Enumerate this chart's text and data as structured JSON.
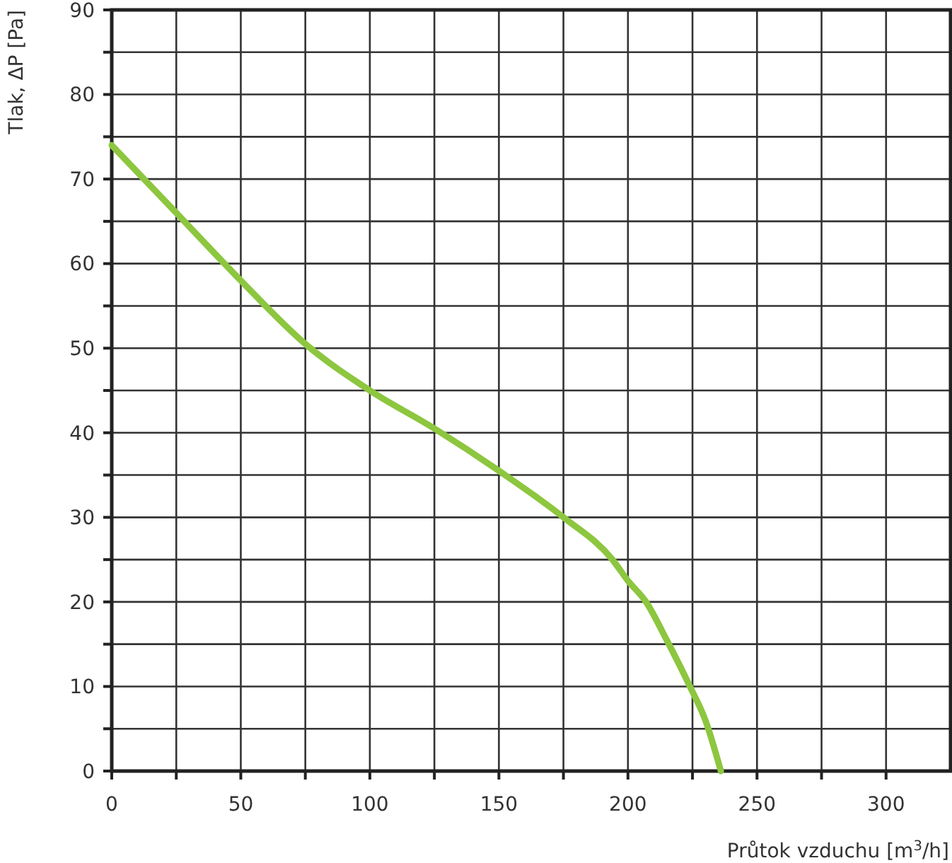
{
  "chart_data": {
    "type": "line",
    "xlabel": "Průtok vzduchu [m$^{3}$/h]",
    "ylabel": "Tlak, ΔP [Pa]",
    "xlim": [
      0,
      325
    ],
    "xticks": [
      0,
      {
        "value": 25,
        "label": null
      },
      50,
      {
        "value": 75,
        "label": null
      },
      100,
      {
        "value": 125,
        "label": null
      },
      150,
      {
        "value": 175,
        "label": null
      },
      200,
      {
        "value": 225,
        "label": null
      },
      250,
      {
        "value": 275,
        "label": null
      },
      300
    ],
    "ylim": [
      0,
      90
    ],
    "yticks": [
      0,
      {
        "value": 5,
        "label": null
      },
      10,
      {
        "value": 15,
        "label": null
      },
      20,
      {
        "value": 25,
        "label": null
      },
      30,
      {
        "value": 35,
        "label": null
      },
      40,
      {
        "value": 45,
        "label": null
      },
      50,
      {
        "value": 55,
        "label": null
      },
      60,
      {
        "value": 65,
        "label": null
      },
      70,
      {
        "value": 75,
        "label": null
      },
      80,
      {
        "value": 85,
        "label": null
      },
      90
    ],
    "grid": true,
    "marker": "none",
    "line_style": "solid",
    "series": [
      {
        "color": "#8dc63f",
        "x": [
          0,
          25,
          50,
          75,
          100,
          125,
          150,
          175,
          194,
          200,
          207,
          215,
          224,
          230,
          236
        ],
        "values": [
          74,
          66,
          58,
          50.5,
          45,
          40.5,
          35.5,
          30,
          25,
          22.5,
          20,
          15.5,
          10,
          6,
          0
        ]
      }
    ]
  }
}
